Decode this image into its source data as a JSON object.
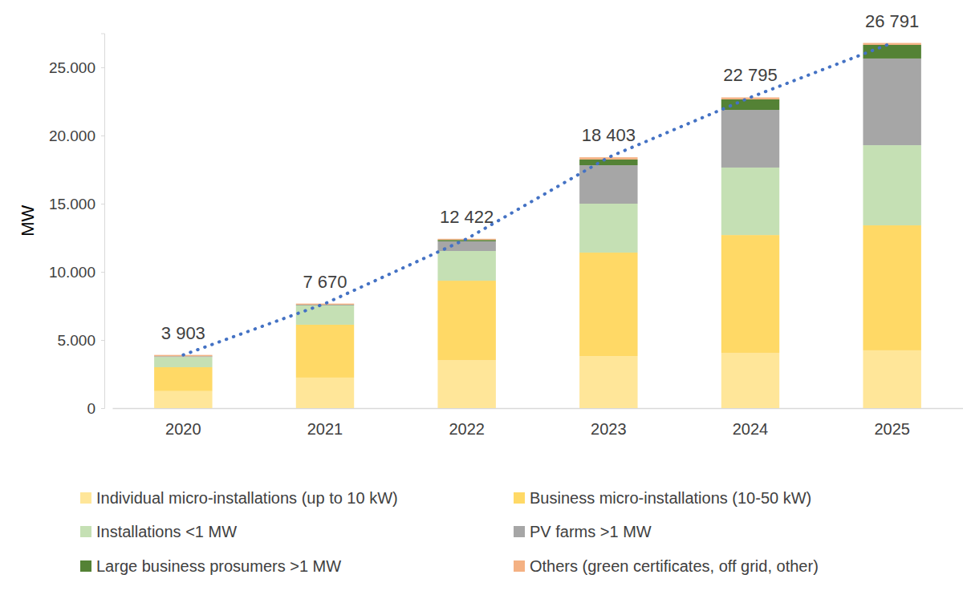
{
  "chart_data": {
    "type": "bar",
    "stacked": true,
    "legend": "bottom",
    "y_label": "MW",
    "categories": [
      "2020",
      "2021",
      "2022",
      "2023",
      "2024",
      "2025"
    ],
    "ylim": [
      0,
      27500
    ],
    "yticks": [
      0,
      {
        "value": 5000,
        "label": "5.000"
      },
      {
        "value": 10000,
        "label": "10.000"
      },
      {
        "value": 15000,
        "label": "15.000"
      },
      {
        "value": 20000,
        "label": "20.000"
      },
      {
        "value": 25000,
        "label": "25.000"
      }
    ],
    "series": [
      {
        "name": "Individual micro-installations (up to 10 kW)",
        "color": "#ffe699",
        "values": [
          1250,
          2240,
          3530,
          3820,
          4060,
          4240
        ]
      },
      {
        "name": "Business micro-installations (10-50 kW)",
        "color": "#ffd966",
        "values": [
          1750,
          3880,
          5820,
          7590,
          8640,
          9170
        ]
      },
      {
        "name": "Installations <1 MW",
        "color": "#c5e0b4",
        "values": [
          750,
          1410,
          2180,
          3590,
          4950,
          5880
        ]
      },
      {
        "name": "PV farms >1 MW",
        "color": "#a6a6a6",
        "values": [
          50,
          50,
          710,
          2820,
          4230,
          6360
        ]
      },
      {
        "name": "Large business prosumers >1 MW",
        "color": "#548235",
        "values": [
          10,
          10,
          100,
          420,
          770,
          1000
        ]
      },
      {
        "name": "Others (green certificates, off grid, other)",
        "color": "#f4b183",
        "values": [
          93,
          80,
          82,
          163,
          145,
          141
        ]
      },
      {
        "type": "line",
        "line_style": "dotted",
        "color": "#4472c4",
        "data_labels": true,
        "values": [
          3903,
          7670,
          12422,
          18403,
          22795,
          26791
        ],
        "value_labels": [
          "3 903",
          "7 670",
          "12 422",
          "18 403",
          "22 795",
          "26 791"
        ]
      }
    ]
  }
}
